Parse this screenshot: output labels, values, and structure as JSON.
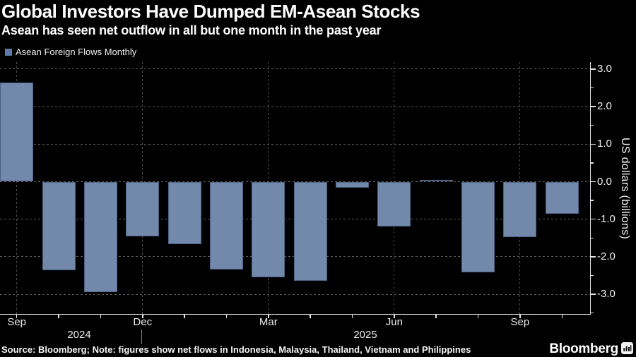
{
  "header": {
    "title": "Global Investors Have Dumped EM-Asean Stocks",
    "subtitle": "Asean has seen net outflow in all but one month in the past year"
  },
  "legend": {
    "label": "Asean Foreign Flows Monthly",
    "swatch_color": "#5e7ba8"
  },
  "chart_data": {
    "type": "bar",
    "series_name": "Asean Foreign Flows Monthly",
    "x": [
      "Sep 2024",
      "Oct 2024",
      "Nov 2024",
      "Dec 2024",
      "Jan 2025",
      "Feb 2025",
      "Mar 2025",
      "Apr 2025",
      "May 2025",
      "Jun 2025",
      "Jul 2025",
      "Aug 2025",
      "Sep 2025",
      "Oct 2025"
    ],
    "values": [
      2.65,
      -2.35,
      -2.95,
      -1.45,
      -1.66,
      -2.34,
      -2.54,
      -2.64,
      -0.16,
      -1.2,
      0.05,
      -2.42,
      -1.48,
      -0.85
    ],
    "bar_color": "#7289ac",
    "ylabel": "US dollars (billions)",
    "ylim": [
      -3.5,
      3.2
    ],
    "yticks": [
      3.0,
      2.0,
      1.0,
      0.0,
      -1.0,
      -2.0,
      -3.0
    ],
    "ytick_labels": [
      "3.0",
      "2.0",
      "1.0",
      "0.0",
      "-1.0",
      "-2.0",
      "-3.0"
    ],
    "xticks": [
      {
        "index": 0,
        "label": "Sep"
      },
      {
        "index": 3,
        "label": "Dec"
      },
      {
        "index": 6,
        "label": "Mar"
      },
      {
        "index": 9,
        "label": "Jun"
      },
      {
        "index": 12,
        "label": "Sep"
      }
    ],
    "years": [
      "2024",
      "2025"
    ],
    "grid": "dashed",
    "grid_color": "#5d5d5d",
    "axis_color": "#e3e3e3",
    "background_color": "#000000",
    "legend_position": "top-left",
    "yaxis_side": "right"
  },
  "footer": {
    "source": "Source: Bloomberg; Note: figures show net flows in Indonesia, Malaysia, Thailand, Vietnam and Philippines",
    "brand": "Bloomberg",
    "brand_icon": "bloomberg-terminal-icon"
  }
}
